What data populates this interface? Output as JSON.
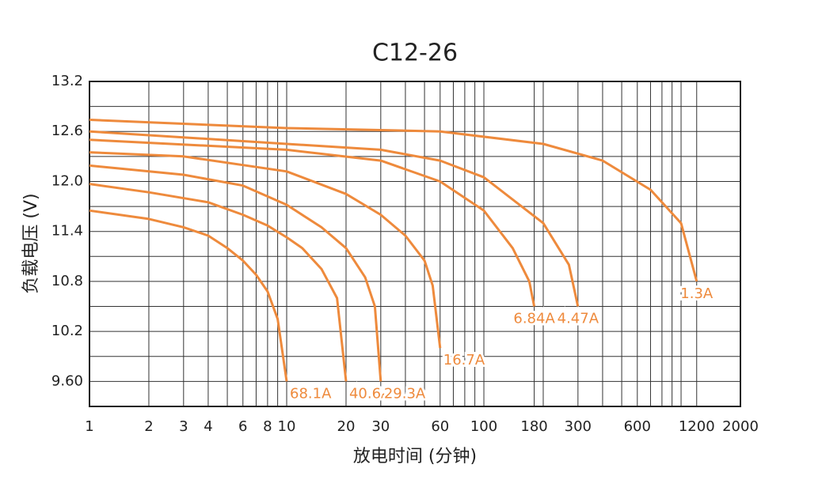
{
  "chart_data": {
    "type": "line",
    "title": "C12-26",
    "x_label": "放电时间 (分钟)",
    "y_label": "负载电压 (V)",
    "x_log": true,
    "grid": true,
    "color": "#ee8a3c",
    "xlim": [
      1,
      2000
    ],
    "xticks": [
      1,
      2,
      3,
      4,
      6,
      8,
      10,
      20,
      30,
      60,
      100,
      180,
      300,
      600,
      1200,
      2000
    ],
    "x_minor_grid": [
      5,
      7,
      9,
      40,
      50,
      70,
      80,
      90,
      200,
      400,
      500,
      700,
      800,
      900,
      1000
    ],
    "ylim": [
      9.3,
      13.2
    ],
    "yticks": [
      {
        "value": 9.6,
        "label": "9.60"
      },
      10.2,
      10.8,
      11.4,
      {
        "value": 12.0,
        "label": "12.0"
      },
      12.6,
      13.2
    ],
    "y_minor_grid": [
      9.9,
      10.5,
      11.1,
      11.7,
      12.3,
      12.9
    ],
    "series": [
      {
        "name": "68.1A",
        "x": [
          1,
          2,
          3,
          4,
          5,
          6,
          7,
          8,
          9,
          10
        ],
        "values": [
          11.65,
          11.55,
          11.45,
          11.35,
          11.2,
          11.05,
          10.88,
          10.68,
          10.35,
          9.6
        ]
      },
      {
        "name": "40.6A",
        "x": [
          1,
          2,
          4,
          6,
          8,
          10,
          12,
          15,
          18,
          20
        ],
        "values": [
          11.97,
          11.87,
          11.75,
          11.6,
          11.47,
          11.33,
          11.2,
          10.95,
          10.6,
          9.6
        ]
      },
      {
        "name": "29.3A",
        "x": [
          1,
          3,
          6,
          10,
          15,
          20,
          25,
          28,
          30
        ],
        "values": [
          12.19,
          12.08,
          11.95,
          11.72,
          11.45,
          11.2,
          10.85,
          10.5,
          9.6
        ]
      },
      {
        "name": "16.7A",
        "x": [
          1,
          3,
          10,
          20,
          30,
          40,
          50,
          55,
          60
        ],
        "values": [
          12.35,
          12.3,
          12.12,
          11.85,
          11.6,
          11.35,
          11.05,
          10.75,
          10.0
        ]
      },
      {
        "name": "6.84A",
        "x": [
          1,
          10,
          30,
          60,
          100,
          140,
          170,
          180
        ],
        "values": [
          12.5,
          12.38,
          12.25,
          12.0,
          11.65,
          11.2,
          10.8,
          10.5
        ]
      },
      {
        "name": "4.47A",
        "x": [
          1,
          10,
          30,
          60,
          100,
          200,
          270,
          300
        ],
        "values": [
          12.6,
          12.45,
          12.38,
          12.25,
          12.05,
          11.5,
          11.0,
          10.5
        ]
      },
      {
        "name": "1.3A",
        "x": [
          1,
          10,
          60,
          200,
          400,
          700,
          1000,
          1200
        ],
        "values": [
          12.74,
          12.64,
          12.6,
          12.45,
          12.25,
          11.9,
          11.5,
          10.8
        ]
      }
    ]
  }
}
